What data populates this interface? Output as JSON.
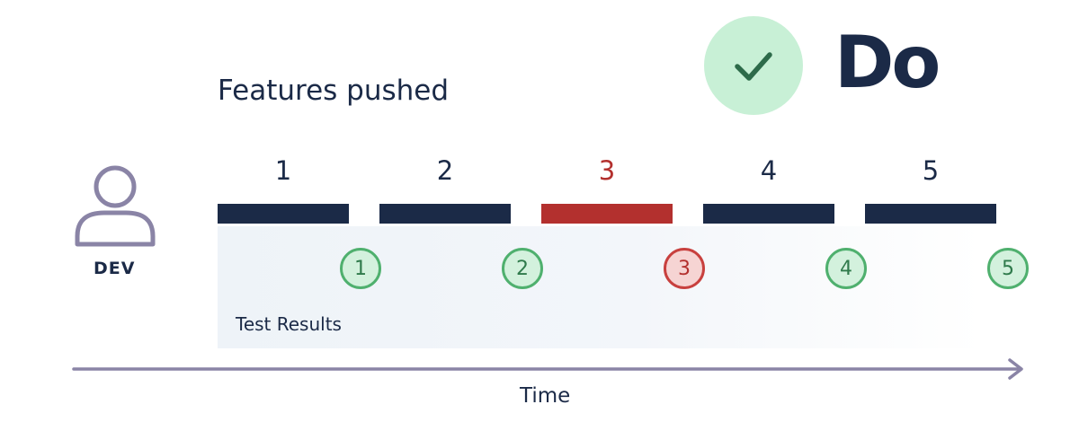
{
  "badge": {
    "icon": "check-icon",
    "word": "Do",
    "bg_color": "#c8f0d6",
    "check_color": "#2d6b4a"
  },
  "features_title": "Features pushed",
  "developer": {
    "icon": "user-icon",
    "label": "DEV"
  },
  "features": [
    {
      "label": "1",
      "status": "ok"
    },
    {
      "label": "2",
      "status": "ok"
    },
    {
      "label": "3",
      "status": "fail"
    },
    {
      "label": "4",
      "status": "ok"
    },
    {
      "label": "5",
      "status": "ok"
    }
  ],
  "test_results_label": "Test Results",
  "time_label": "Time",
  "colors": {
    "navy": "#1b2a47",
    "fail_red": "#b3302e",
    "ok_fill": "#d3f1dd",
    "ok_border": "#4fb06e",
    "ok_text": "#2f7a4b",
    "fail_fill": "#f6d4d3",
    "fail_border": "#c8403e",
    "fail_text": "#b3302e",
    "axis": "#8a84a6",
    "dev_icon": "#8a84a6"
  }
}
